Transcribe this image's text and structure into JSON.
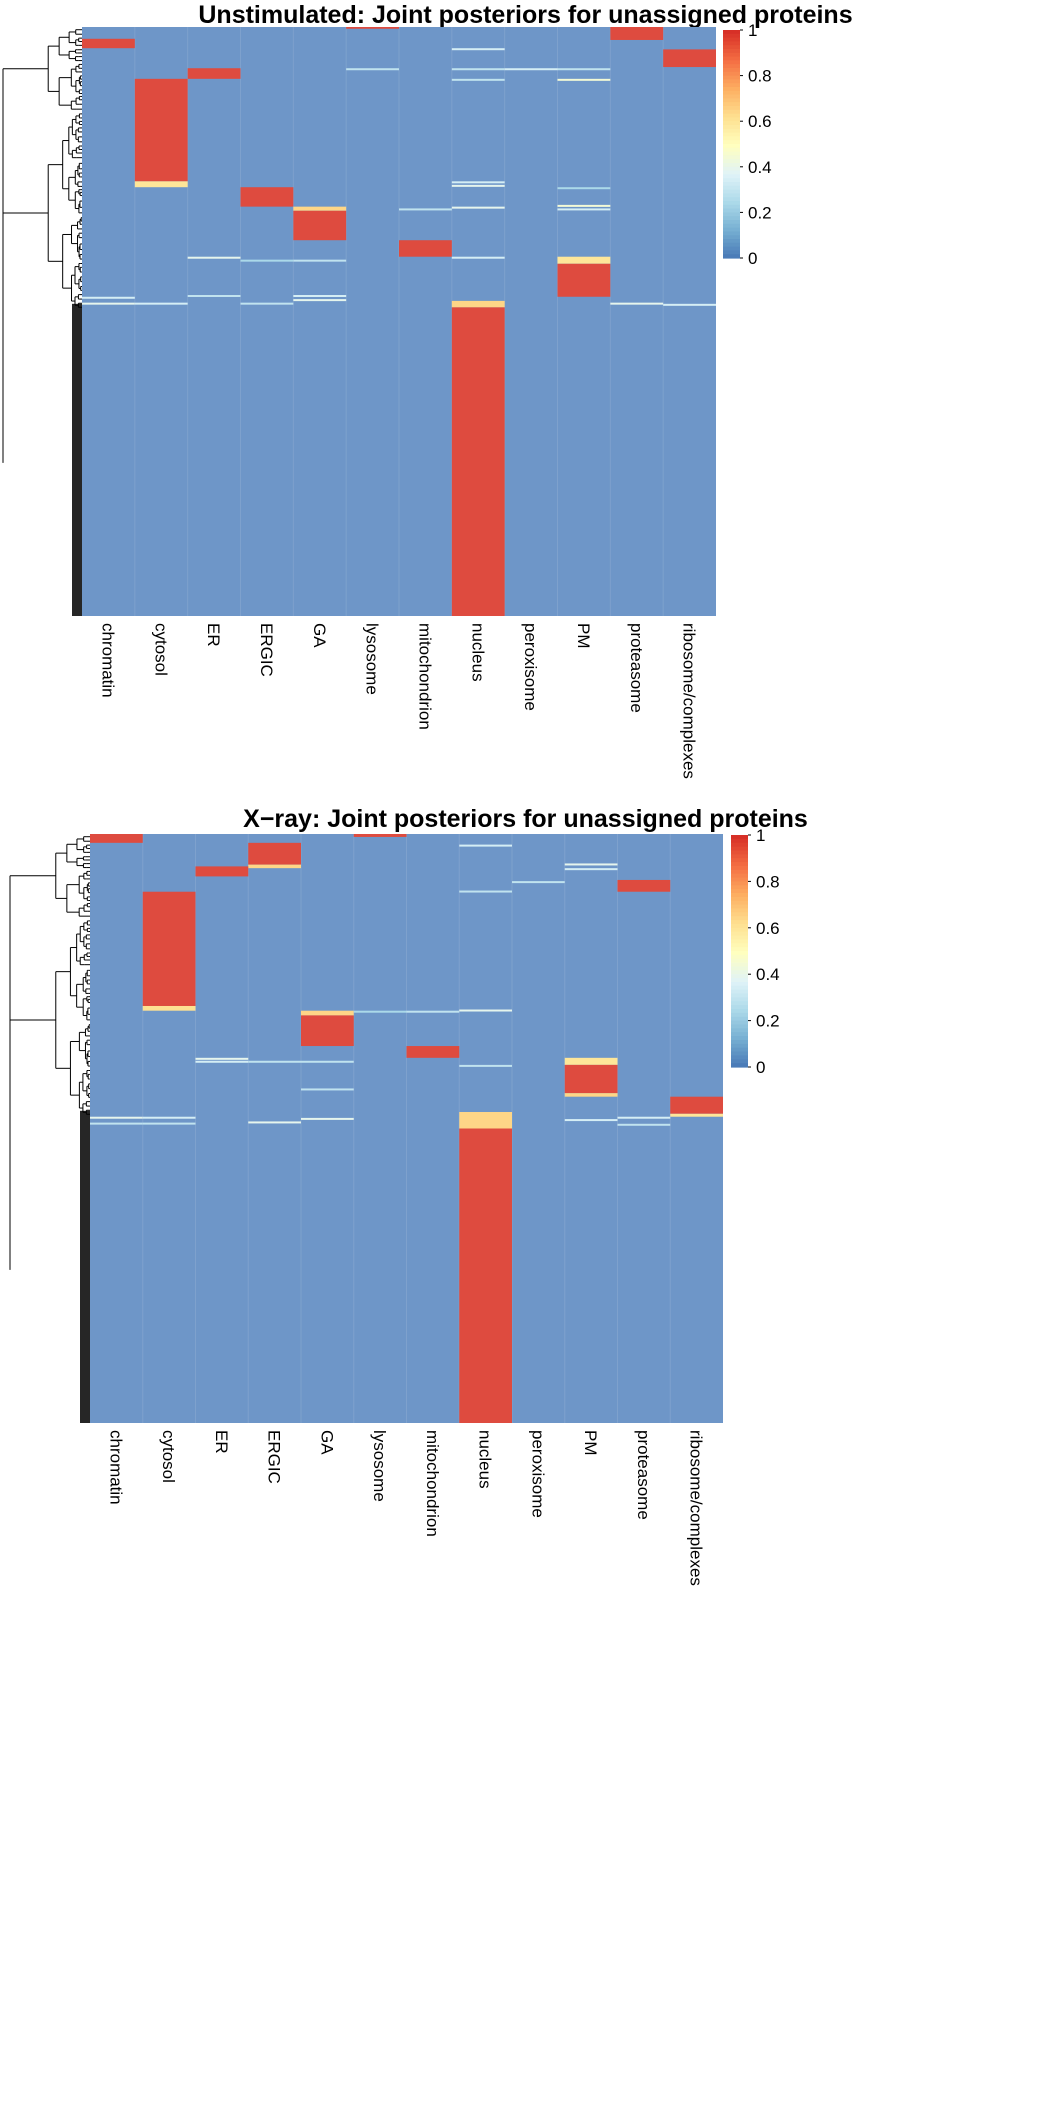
{
  "colors": {
    "background_cell": "#6e96c8",
    "high": "#de4b3f",
    "palette": [
      "#4575b4",
      "#74add1",
      "#abd9e9",
      "#e0f3f8",
      "#ffffbf",
      "#fee090",
      "#fdae61",
      "#f46d43",
      "#d73027"
    ],
    "dendrogram": "#000000"
  },
  "chart_data": [
    {
      "type": "heatmap",
      "title": "Unstimulated: Joint posteriors for unassigned proteins",
      "xlabel": "",
      "ylabel": "",
      "columns": [
        "chromatin",
        "cytosol",
        "ER",
        "ERGIC",
        "GA",
        "lysosome",
        "mitochondrion",
        "nucleus",
        "peroxisome",
        "PM",
        "proteasome",
        "ribosome/complexes"
      ],
      "n_rows": 1000,
      "value_range": [
        0,
        1
      ],
      "colorbar": {
        "ticks": [
          0,
          0.2,
          0.4,
          0.6,
          0.8,
          1
        ],
        "tick_labels": [
          "0",
          "0.2",
          "0.4",
          "0.6",
          "0.8",
          "1"
        ],
        "placement": "right"
      },
      "row_dendrogram": true,
      "blocks": [
        {
          "column": "lysosome",
          "row_start": 0,
          "row_end": 3,
          "value": 0.95
        },
        {
          "column": "proteasome",
          "row_start": 0,
          "row_end": 22,
          "value": 0.95
        },
        {
          "column": "chromatin",
          "row_start": 20,
          "row_end": 36,
          "value": 0.95
        },
        {
          "column": "ribosome/complexes",
          "row_start": 38,
          "row_end": 68,
          "value": 0.95
        },
        {
          "column": "ER",
          "row_start": 70,
          "row_end": 88,
          "value": 0.93
        },
        {
          "column": "cytosol",
          "row_start": 88,
          "row_end": 262,
          "value": 0.95
        },
        {
          "column": "cytosol",
          "row_start": 262,
          "row_end": 272,
          "value": 0.6
        },
        {
          "column": "ERGIC",
          "row_start": 272,
          "row_end": 305,
          "value": 0.95
        },
        {
          "column": "GA",
          "row_start": 305,
          "row_end": 312,
          "value": 0.65
        },
        {
          "column": "GA",
          "row_start": 312,
          "row_end": 362,
          "value": 0.95
        },
        {
          "column": "mitochondrion",
          "row_start": 362,
          "row_end": 390,
          "value": 0.95
        },
        {
          "column": "PM",
          "row_start": 390,
          "row_end": 402,
          "value": 0.6
        },
        {
          "column": "PM",
          "row_start": 402,
          "row_end": 458,
          "value": 0.95
        },
        {
          "column": "nucleus",
          "row_start": 465,
          "row_end": 476,
          "value": 0.65
        },
        {
          "column": "nucleus",
          "row_start": 476,
          "row_end": 1000,
          "value": 0.95
        }
      ],
      "stripes": [
        {
          "column": "nucleus",
          "row": 36,
          "value": 0.35
        },
        {
          "column": "nucleus",
          "row": 70,
          "value": 0.3
        },
        {
          "column": "nucleus",
          "row": 88,
          "value": 0.3
        },
        {
          "column": "nucleus",
          "row": 262,
          "value": 0.35
        },
        {
          "column": "nucleus",
          "row": 268,
          "value": 0.4
        },
        {
          "column": "nucleus",
          "row": 305,
          "value": 0.4
        },
        {
          "column": "nucleus",
          "row": 390,
          "value": 0.35
        },
        {
          "column": "PM",
          "row": 70,
          "value": 0.3
        },
        {
          "column": "PM",
          "row": 88,
          "value": 0.45
        },
        {
          "column": "PM",
          "row": 272,
          "value": 0.25
        },
        {
          "column": "PM",
          "row": 302,
          "value": 0.45
        },
        {
          "column": "PM",
          "row": 308,
          "value": 0.35
        },
        {
          "column": "ER",
          "row": 390,
          "value": 0.4
        },
        {
          "column": "ER",
          "row": 455,
          "value": 0.3
        },
        {
          "column": "GA",
          "row": 395,
          "value": 0.3
        },
        {
          "column": "GA",
          "row": 455,
          "value": 0.35
        },
        {
          "column": "GA",
          "row": 462,
          "value": 0.4
        },
        {
          "column": "chromatin",
          "row": 458,
          "value": 0.35
        },
        {
          "column": "chromatin",
          "row": 468,
          "value": 0.4
        },
        {
          "column": "cytosol",
          "row": 468,
          "value": 0.35
        },
        {
          "column": "ERGIC",
          "row": 395,
          "value": 0.25
        },
        {
          "column": "ERGIC",
          "row": 468,
          "value": 0.3
        },
        {
          "column": "mitochondrion",
          "row": 308,
          "value": 0.3
        },
        {
          "column": "lysosome",
          "row": 70,
          "value": 0.3
        },
        {
          "column": "peroxisome",
          "row": 70,
          "value": 0.35
        },
        {
          "column": "proteasome",
          "row": 468,
          "value": 0.4
        },
        {
          "column": "ribosome/complexes",
          "row": 470,
          "value": 0.35
        }
      ]
    },
    {
      "type": "heatmap",
      "title": "X−ray: Joint posteriors for unassigned proteins",
      "xlabel": "",
      "ylabel": "",
      "columns": [
        "chromatin",
        "cytosol",
        "ER",
        "ERGIC",
        "GA",
        "lysosome",
        "mitochondrion",
        "nucleus",
        "peroxisome",
        "PM",
        "proteasome",
        "ribosome/complexes"
      ],
      "n_rows": 1000,
      "value_range": [
        0,
        1
      ],
      "colorbar": {
        "ticks": [
          0,
          0.2,
          0.4,
          0.6,
          0.8,
          1
        ],
        "tick_labels": [
          "0",
          "0.2",
          "0.4",
          "0.6",
          "0.8",
          "1"
        ],
        "placement": "right"
      },
      "row_dendrogram": true,
      "blocks": [
        {
          "column": "lysosome",
          "row_start": 0,
          "row_end": 5,
          "value": 0.95
        },
        {
          "column": "chromatin",
          "row_start": 0,
          "row_end": 15,
          "value": 0.95
        },
        {
          "column": "ERGIC",
          "row_start": 15,
          "row_end": 52,
          "value": 0.95
        },
        {
          "column": "ERGIC",
          "row_start": 52,
          "row_end": 58,
          "value": 0.65
        },
        {
          "column": "ER",
          "row_start": 55,
          "row_end": 72,
          "value": 0.93
        },
        {
          "column": "proteasome",
          "row_start": 78,
          "row_end": 98,
          "value": 0.95
        },
        {
          "column": "cytosol",
          "row_start": 98,
          "row_end": 292,
          "value": 0.95
        },
        {
          "column": "cytosol",
          "row_start": 292,
          "row_end": 300,
          "value": 0.62
        },
        {
          "column": "GA",
          "row_start": 300,
          "row_end": 308,
          "value": 0.65
        },
        {
          "column": "GA",
          "row_start": 308,
          "row_end": 360,
          "value": 0.95
        },
        {
          "column": "mitochondrion",
          "row_start": 360,
          "row_end": 380,
          "value": 0.95
        },
        {
          "column": "PM",
          "row_start": 380,
          "row_end": 392,
          "value": 0.6
        },
        {
          "column": "PM",
          "row_start": 392,
          "row_end": 440,
          "value": 0.95
        },
        {
          "column": "PM",
          "row_start": 440,
          "row_end": 446,
          "value": 0.65
        },
        {
          "column": "ribosome/complexes",
          "row_start": 446,
          "row_end": 475,
          "value": 0.95
        },
        {
          "column": "ribosome/complexes",
          "row_start": 475,
          "row_end": 480,
          "value": 0.6
        },
        {
          "column": "nucleus",
          "row_start": 472,
          "row_end": 500,
          "value": 0.65
        },
        {
          "column": "nucleus",
          "row_start": 500,
          "row_end": 1000,
          "value": 0.95
        }
      ],
      "stripes": [
        {
          "column": "nucleus",
          "row": 18,
          "value": 0.35
        },
        {
          "column": "nucleus",
          "row": 96,
          "value": 0.3
        },
        {
          "column": "nucleus",
          "row": 298,
          "value": 0.4
        },
        {
          "column": "nucleus",
          "row": 392,
          "value": 0.3
        },
        {
          "column": "PM",
          "row": 50,
          "value": 0.4
        },
        {
          "column": "PM",
          "row": 58,
          "value": 0.35
        },
        {
          "column": "PM",
          "row": 484,
          "value": 0.35
        },
        {
          "column": "peroxisome",
          "row": 80,
          "value": 0.3
        },
        {
          "column": "ER",
          "row": 380,
          "value": 0.4
        },
        {
          "column": "ER",
          "row": 385,
          "value": 0.35
        },
        {
          "column": "ERGIC",
          "row": 385,
          "value": 0.3
        },
        {
          "column": "ERGIC",
          "row": 488,
          "value": 0.4
        },
        {
          "column": "GA",
          "row": 385,
          "value": 0.3
        },
        {
          "column": "GA",
          "row": 432,
          "value": 0.3
        },
        {
          "column": "GA",
          "row": 482,
          "value": 0.4
        },
        {
          "column": "chromatin",
          "row": 480,
          "value": 0.4
        },
        {
          "column": "chromatin",
          "row": 490,
          "value": 0.3
        },
        {
          "column": "cytosol",
          "row": 480,
          "value": 0.35
        },
        {
          "column": "cytosol",
          "row": 490,
          "value": 0.3
        },
        {
          "column": "mitochondrion",
          "row": 300,
          "value": 0.3
        },
        {
          "column": "lysosome",
          "row": 300,
          "value": 0.25
        },
        {
          "column": "proteasome",
          "row": 480,
          "value": 0.35
        },
        {
          "column": "proteasome",
          "row": 492,
          "value": 0.3
        }
      ]
    }
  ]
}
